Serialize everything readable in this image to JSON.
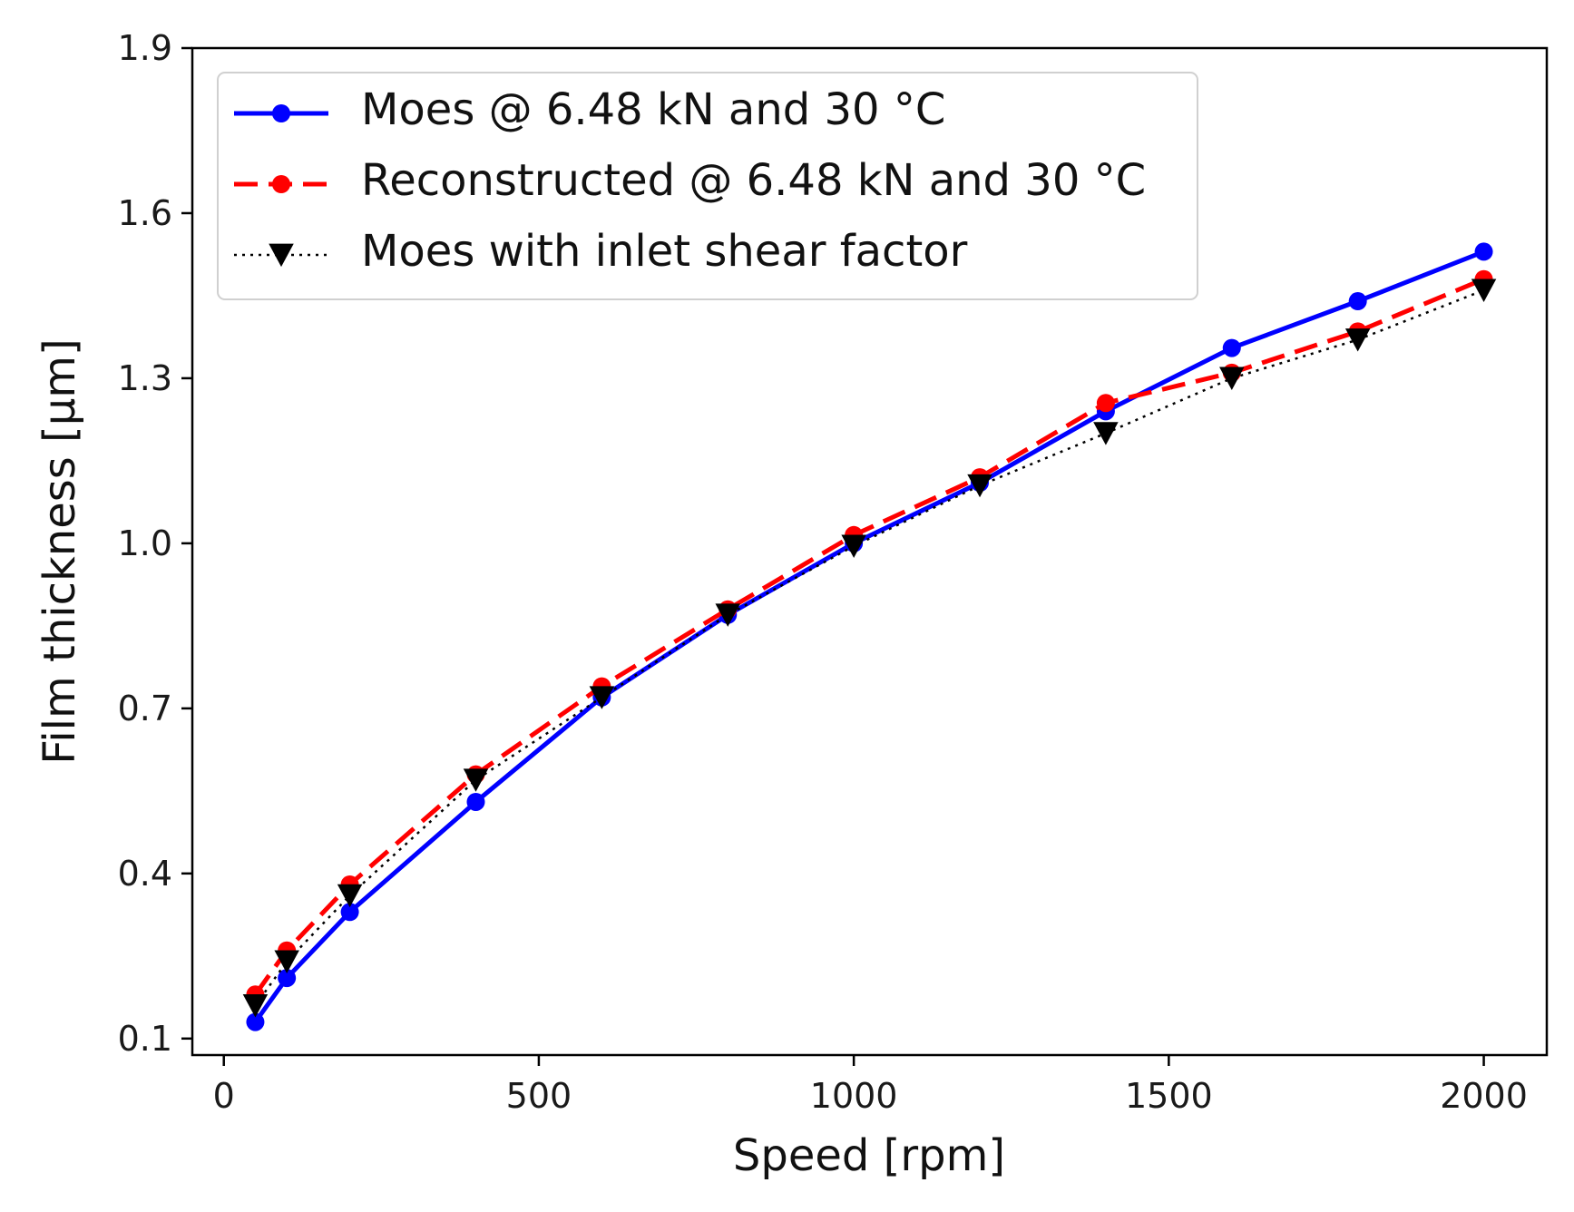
{
  "chart_data": {
    "type": "line",
    "title": "",
    "xlabel": "Speed [rpm]",
    "ylabel": "Film thickness [μm]",
    "xlim": [
      -50,
      2100
    ],
    "ylim": [
      0.07,
      1.9
    ],
    "xticks": [
      0,
      500,
      1000,
      1500,
      2000
    ],
    "xtick_labels": [
      "0",
      "500",
      "1000",
      "1500",
      "2000"
    ],
    "yticks": [
      0.1,
      0.4,
      0.7,
      1.0,
      1.3,
      1.6,
      1.9
    ],
    "ytick_labels": [
      "0.1",
      "0.4",
      "0.7",
      "1.0",
      "1.3",
      "1.6",
      "1.9"
    ],
    "grid": false,
    "legend_position": "upper-left",
    "series": [
      {
        "name": "Moes @ 6.48 kN and 30 °C",
        "color": "#0000ff",
        "line_style": "solid",
        "marker": "circle",
        "x": [
          50,
          100,
          200,
          400,
          600,
          800,
          1000,
          1200,
          1400,
          1600,
          1800,
          2000
        ],
        "y": [
          0.13,
          0.21,
          0.33,
          0.53,
          0.72,
          0.87,
          1.0,
          1.11,
          1.24,
          1.355,
          1.44,
          1.53
        ]
      },
      {
        "name": "Reconstructed @ 6.48 kN and 30 °C",
        "color": "#ff0000",
        "line_style": "dashed",
        "marker": "circle",
        "x": [
          50,
          100,
          200,
          400,
          600,
          800,
          1000,
          1200,
          1400,
          1600,
          1800,
          2000
        ],
        "y": [
          0.18,
          0.26,
          0.38,
          0.58,
          0.74,
          0.88,
          1.015,
          1.12,
          1.255,
          1.31,
          1.385,
          1.48
        ]
      },
      {
        "name": "Moes with inlet shear factor",
        "color": "#000000",
        "line_style": "dotted",
        "marker": "triangle-down",
        "x": [
          50,
          100,
          200,
          400,
          600,
          800,
          1000,
          1200,
          1400,
          1600,
          1800,
          2000
        ],
        "y": [
          0.16,
          0.24,
          0.36,
          0.57,
          0.72,
          0.87,
          0.995,
          1.105,
          1.2,
          1.3,
          1.37,
          1.46
        ]
      }
    ]
  }
}
